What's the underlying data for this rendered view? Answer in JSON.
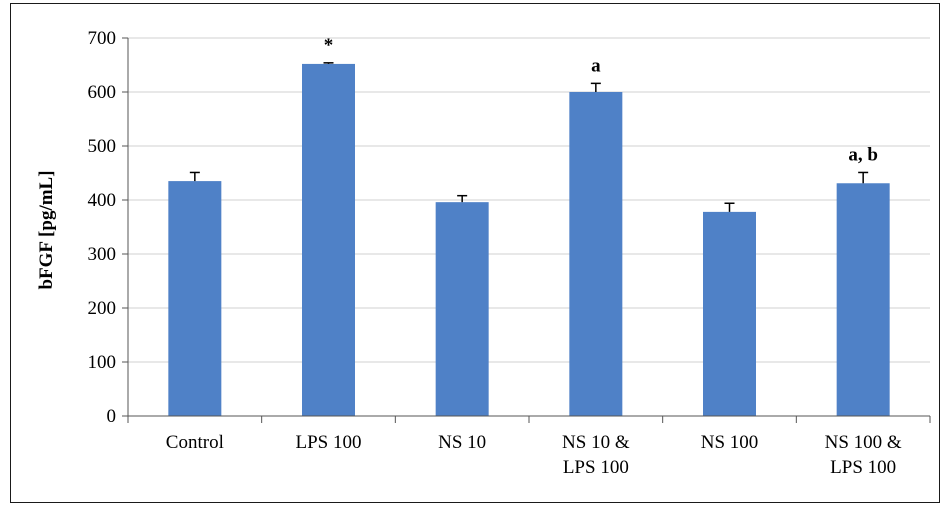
{
  "chart_data": {
    "type": "bar",
    "ylabel": "bFGF [pg/mL]",
    "xlabel": "",
    "ylim": [
      0,
      700
    ],
    "yticks": [
      "0",
      "100",
      "200",
      "300",
      "400",
      "500",
      "600",
      "700"
    ],
    "grid": true,
    "categories": [
      [
        "Control"
      ],
      [
        "LPS 100"
      ],
      [
        "NS 10"
      ],
      [
        "NS 10 &",
        "LPS 100"
      ],
      [
        "NS 100"
      ],
      [
        "NS 100 &",
        "LPS 100"
      ]
    ],
    "values": [
      435,
      652,
      396,
      600,
      378,
      431
    ],
    "errors": [
      16,
      2,
      12,
      16,
      16,
      20
    ],
    "annotations": [
      "",
      "*",
      "",
      "a",
      "",
      "a, b"
    ],
    "bar_color": "#4F81C7"
  }
}
